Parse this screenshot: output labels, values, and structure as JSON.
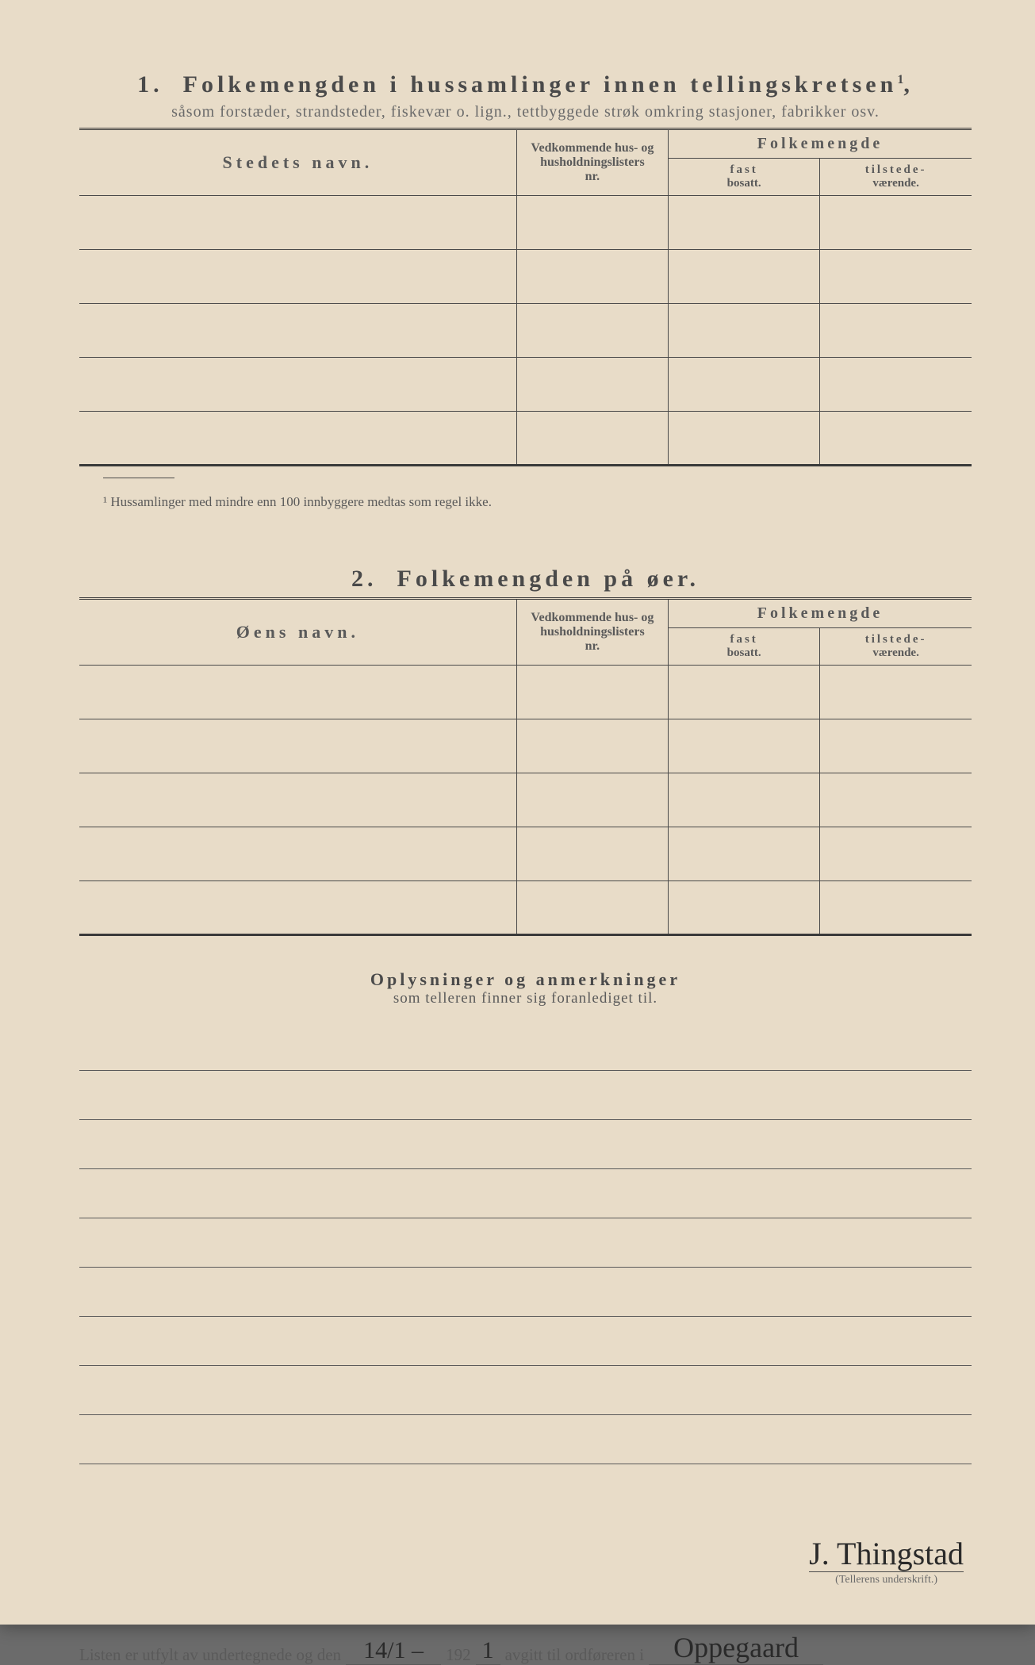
{
  "section1": {
    "number": "1.",
    "title": "Folkemengden i hussamlinger innen tellingskretsen",
    "title_sup": "1",
    "subtitle": "såsom forstæder, strandsteder, fiskevær o. lign., tettbyggede strøk omkring stasjoner, fabrikker osv.",
    "col_name": "Stedets navn.",
    "col_vedk_1": "Vedkommende hus- og",
    "col_vedk_2": "husholdningslisters",
    "col_vedk_3": "nr.",
    "col_folk": "Folkemengde",
    "col_fast_1": "fast",
    "col_fast_2": "bosatt.",
    "col_til_1": "tilstede-",
    "col_til_2": "værende.",
    "rows": 5
  },
  "footnote": "¹  Hussamlinger med mindre enn 100 innbyggere medtas som regel ikke.",
  "section2": {
    "number": "2.",
    "title": "Folkemengden på øer.",
    "col_name": "Øens navn.",
    "rows": 5
  },
  "notes": {
    "line1": "Oplysninger og anmerkninger",
    "line2": "som telleren finner sig foranlediget til.",
    "ruled_count": 9
  },
  "signoff": {
    "prefix": "Listen er utfylt av undertegnede og den",
    "date": "14/1 –",
    "year_prefix": "192",
    "year_last": "1",
    "mid": "avgitt til ordføreren i",
    "place": "Oppegaard",
    "signature": "J. Thingstad",
    "sig_label": "(Tellerens underskrift.)"
  }
}
